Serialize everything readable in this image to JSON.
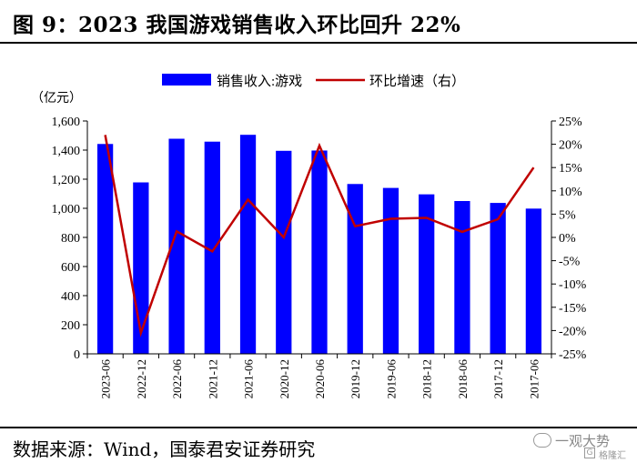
{
  "header": {
    "title": "图 9：2023 我国游戏销售收入环比回升 22%"
  },
  "footer": {
    "source": "数据来源：Wind，国泰君安证券研究"
  },
  "watermark": {
    "line1": "一观大势",
    "line2": "格隆汇"
  },
  "chart_data": {
    "type": "bar+line",
    "categories": [
      "2023-06",
      "2022-12",
      "2022-06",
      "2021-12",
      "2021-06",
      "2020-12",
      "2020-06",
      "2019-12",
      "2019-06",
      "2018-12",
      "2018-06",
      "2017-12",
      "2017-06"
    ],
    "series": [
      {
        "name": "销售收入:游戏",
        "type": "bar",
        "axis": "left",
        "color": "#0000ff",
        "values": [
          1442,
          1178,
          1478,
          1458,
          1505,
          1395,
          1397,
          1167,
          1140,
          1096,
          1050,
          1037,
          998
        ]
      },
      {
        "name": "环比增速（右）",
        "type": "line",
        "axis": "right",
        "color": "#c00000",
        "values": [
          22,
          -20.5,
          1.3,
          -3,
          8.1,
          0,
          19.7,
          2.4,
          4,
          4.2,
          1.2,
          3.9,
          15
        ]
      }
    ],
    "left_axis": {
      "unit": "（亿元）",
      "min": 0,
      "max": 1600,
      "step": 200,
      "tick_labels": [
        "0",
        "200",
        "400",
        "600",
        "800",
        "1,000",
        "1,200",
        "1,400",
        "1,600"
      ]
    },
    "right_axis": {
      "min": -25,
      "max": 25,
      "step": 5,
      "tick_labels": [
        "-25%",
        "-20%",
        "-15%",
        "-10%",
        "-5%",
        "0%",
        "5%",
        "10%",
        "15%",
        "20%",
        "25%"
      ]
    },
    "legend": {
      "position": "top",
      "items": [
        "销售收入:游戏",
        "环比增速（右）"
      ]
    },
    "grid": false
  }
}
